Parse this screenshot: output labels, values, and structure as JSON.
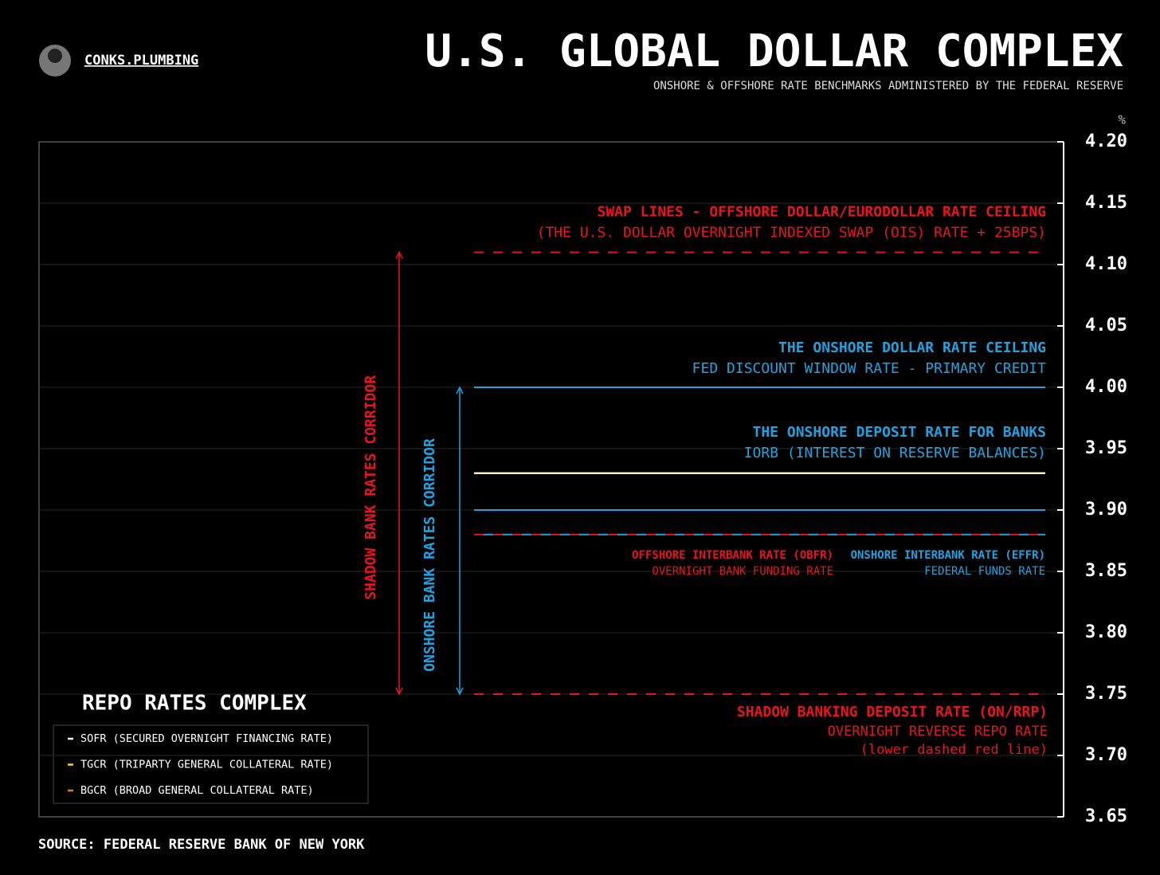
{
  "chart_data": {
    "type": "level",
    "brand": "CONKS.PLUMBING",
    "title": "U.S. GLOBAL DOLLAR COMPLEX",
    "subtitle": "ONSHORE & OFFSHORE RATE BENCHMARKS ADMINISTERED BY THE FEDERAL RESERVE",
    "source": "SOURCE: FEDERAL RESERVE BANK OF NEW YORK",
    "unit": "%",
    "ylim": [
      3.65,
      4.2
    ],
    "yticks": [
      {
        "value": 3.65,
        "label": "3.65"
      },
      {
        "value": 3.7,
        "label": "3.70"
      },
      {
        "value": 3.75,
        "label": "3.75"
      },
      {
        "value": 3.8,
        "label": "3.80"
      },
      {
        "value": 3.85,
        "label": "3.85"
      },
      {
        "value": 3.9,
        "label": "3.90"
      },
      {
        "value": 3.95,
        "label": "3.95"
      },
      {
        "value": 4.0,
        "label": "4.00"
      },
      {
        "value": 4.05,
        "label": "4.05"
      },
      {
        "value": 4.1,
        "label": "4.10"
      },
      {
        "value": 4.15,
        "label": "4.15"
      },
      {
        "value": 4.2,
        "label": "4.20"
      }
    ],
    "grid": true,
    "levels": [
      {
        "value": 4.11,
        "color": "#e8141e",
        "dashed": true,
        "label": "SWAP LINES - OFFSHORE DOLLAR/EURODOLLAR RATE CEILING",
        "sublabel": "(THE U.S. DOLLAR OVERNIGHT INDEXED SWAP (OIS) RATE + 25BPS)"
      },
      {
        "value": 4.0,
        "color": "#1fa3e0",
        "dashed": false,
        "label": "THE ONSHORE DOLLAR RATE CEILING",
        "sublabel": "FED DISCOUNT WINDOW RATE - PRIMARY CREDIT"
      },
      {
        "value": 3.9,
        "color": "#1fa3e0",
        "dashed": false,
        "label": "THE ONSHORE DEPOSIT RATE FOR BANKS",
        "sublabel": "IORB (INTEREST ON RESERVE BALANCES)"
      },
      {
        "value": 3.88,
        "color": "#e8141e",
        "dashed": true,
        "label": "OFFSHORE INTERBANK RATE (OBFR)",
        "sublabel": "OVERNIGHT BANK FUNDING RATE"
      },
      {
        "value": 3.88,
        "color": "#1fa3e0",
        "dashed": true,
        "label": "ONSHORE INTERBANK RATE (EFFR)",
        "sublabel": "FEDERAL FUNDS RATE"
      },
      {
        "value": 3.75,
        "color": "#e8141e",
        "dashed": true,
        "label": "SHADOW BANKING DEPOSIT RATE (ON/RRP)",
        "sublabel": "OVERNIGHT REVERSE REPO RATE",
        "note": "(lower dashed red line)"
      }
    ],
    "corridors": [
      {
        "label": "SHADOW BANK RATES CORRIDOR",
        "from": 3.75,
        "to": 4.11,
        "color": "#e8141e"
      },
      {
        "label": "ONSHORE BANK RATES CORRIDOR",
        "from": 3.75,
        "to": 4.0,
        "color": "#1fa3e0"
      }
    ],
    "legend_title": "REPO RATES COMPLEX",
    "series": [
      {
        "name": "SOFR (SECURED OVERNIGHT FINANCING RATE)",
        "color": "#ffffff",
        "values": [
          3.93
        ]
      },
      {
        "name": "TGCR (TRIPARTY GENERAL COLLATERAL RATE)",
        "color": "#f5d90a",
        "values": [
          3.93
        ]
      },
      {
        "name": "BGCR (BROAD GENERAL COLLATERAL RATE)",
        "color": "#d9821e",
        "values": [
          3.93
        ]
      }
    ]
  }
}
